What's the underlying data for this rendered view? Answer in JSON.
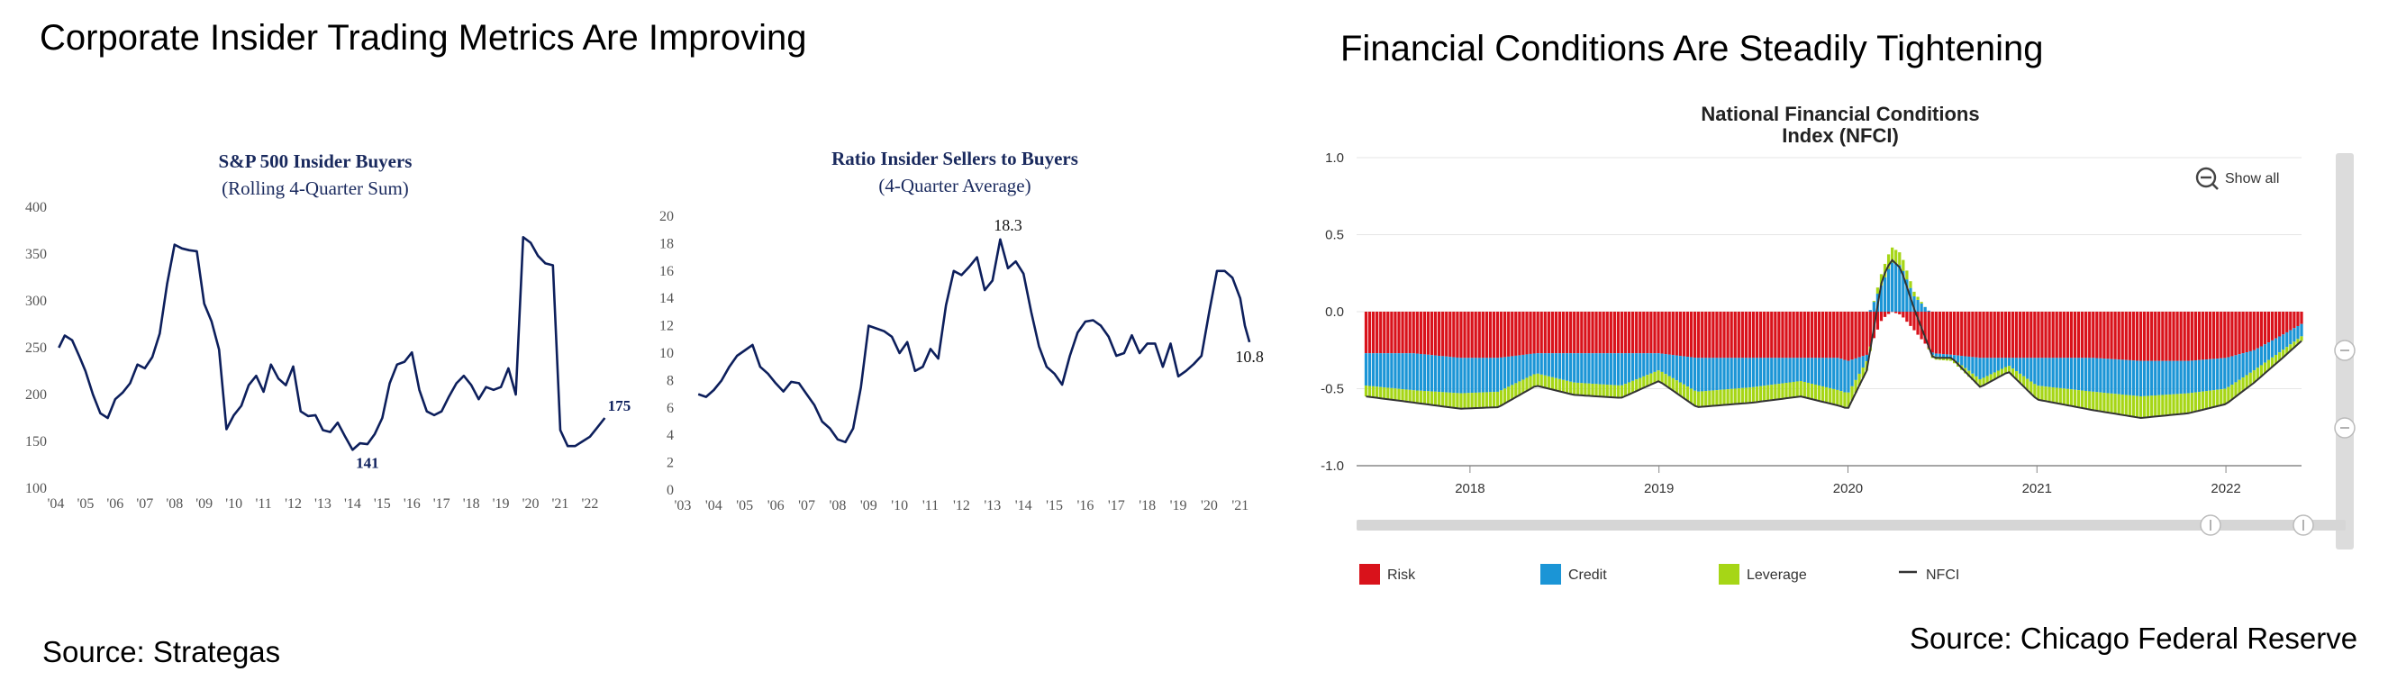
{
  "headings": {
    "left": "Corporate Insider Trading Metrics Are Improving",
    "right": "Financial Conditions Are Steadily Tightening"
  },
  "sources": {
    "left": "Source: Strategas",
    "right": "Source:   Chicago Federal Reserve"
  },
  "colors": {
    "series_navy": "#0d1f5c",
    "risk": "#d9121b",
    "credit": "#1b95d6",
    "leverage": "#a6d616",
    "nfci": "#333333"
  },
  "chart_data": [
    {
      "type": "line",
      "title": "S&P 500 Insider Buyers",
      "subtitle": "(Rolling 4-Quarter Sum)",
      "xlabel": "",
      "ylabel": "",
      "ylim": [
        100,
        400
      ],
      "xlim": [
        2004,
        2022.7
      ],
      "yticks": [
        100,
        150,
        200,
        250,
        300,
        350,
        400
      ],
      "xtick_labels": [
        "'04",
        "'05",
        "'06",
        "'07",
        "'08",
        "'09",
        "'10",
        "'11",
        "'12",
        "'13",
        "'14",
        "'15",
        "'16",
        "'17",
        "'18",
        "'19",
        "'20",
        "'21",
        "'22"
      ],
      "annotations": [
        {
          "text": "141",
          "x": 2014.5,
          "y": 141
        },
        {
          "text": "175",
          "x": 2022.6,
          "y": 175
        }
      ],
      "grid": false,
      "series": [
        {
          "x": [
            2004.1,
            2004.3,
            2004.55,
            2004.8,
            2005.0,
            2005.25,
            2005.5,
            2005.75,
            2006.0,
            2006.25,
            2006.5,
            2006.75,
            2007.0,
            2007.25,
            2007.5,
            2007.75,
            2008.0,
            2008.25,
            2008.5,
            2008.75,
            2009.0,
            2009.25,
            2009.5,
            2009.75,
            2010.0,
            2010.25,
            2010.5,
            2010.75,
            2011.0,
            2011.25,
            2011.5,
            2011.75,
            2012.0,
            2012.25,
            2012.5,
            2012.75,
            2013.0,
            2013.25,
            2013.5,
            2013.75,
            2014.0,
            2014.25,
            2014.5,
            2014.75,
            2015.0,
            2015.25,
            2015.5,
            2015.75,
            2016.0,
            2016.25,
            2016.5,
            2016.75,
            2017.0,
            2017.25,
            2017.5,
            2017.75,
            2018.0,
            2018.25,
            2018.5,
            2018.75,
            2019.0,
            2019.25,
            2019.5,
            2019.75,
            2020.0,
            2020.25,
            2020.5,
            2020.75,
            2021.0,
            2021.25,
            2021.5,
            2021.75,
            2022.0,
            2022.25,
            2022.5
          ],
          "y": [
            250,
            263,
            258,
            240,
            225,
            200,
            180,
            175,
            195,
            202,
            212,
            232,
            228,
            240,
            265,
            318,
            360,
            356,
            354,
            353,
            297,
            278,
            248,
            163,
            178,
            188,
            210,
            220,
            203,
            232,
            217,
            210,
            230,
            182,
            177,
            178,
            162,
            160,
            170,
            155,
            141,
            148,
            147,
            158,
            175,
            212,
            232,
            235,
            245,
            205,
            182,
            178,
            182,
            198,
            212,
            220,
            210,
            195,
            208,
            205,
            208,
            228,
            200,
            368,
            362,
            348,
            340,
            338,
            162,
            145,
            145,
            150,
            155,
            165,
            175
          ]
        }
      ]
    },
    {
      "type": "line",
      "title": "Ratio Insider Sellers to Buyers",
      "subtitle": "(4-Quarter Average)",
      "xlabel": "",
      "ylabel": "",
      "ylim": [
        0,
        20
      ],
      "xlim": [
        2003,
        2021.5
      ],
      "yticks": [
        0,
        2,
        4,
        6,
        8,
        10,
        12,
        14,
        16,
        18,
        20
      ],
      "xtick_labels": [
        "'03",
        "'04",
        "'05",
        "'06",
        "'07",
        "'08",
        "'09",
        "'10",
        "'11",
        "'12",
        "'13",
        "'14",
        "'15",
        "'16",
        "'17",
        "'18",
        "'19",
        "'20",
        "'21"
      ],
      "annotations": [
        {
          "text": "18.3",
          "x": 2013.5,
          "y": 18.3
        },
        {
          "text": "10.8",
          "x": 2021.3,
          "y": 10.8
        }
      ],
      "grid": false,
      "series": [
        {
          "x": [
            2003.5,
            2003.75,
            2004.0,
            2004.25,
            2004.5,
            2004.75,
            2005.0,
            2005.25,
            2005.5,
            2005.75,
            2006.0,
            2006.25,
            2006.5,
            2006.75,
            2007.0,
            2007.25,
            2007.5,
            2007.75,
            2008.0,
            2008.25,
            2008.5,
            2008.75,
            2009.0,
            2009.25,
            2009.5,
            2009.75,
            2010.0,
            2010.25,
            2010.5,
            2010.75,
            2011.0,
            2011.25,
            2011.5,
            2011.75,
            2012.0,
            2012.25,
            2012.5,
            2012.75,
            2013.0,
            2013.25,
            2013.5,
            2013.75,
            2014.0,
            2014.25,
            2014.5,
            2014.75,
            2015.0,
            2015.25,
            2015.5,
            2015.75,
            2016.0,
            2016.25,
            2016.5,
            2016.75,
            2017.0,
            2017.25,
            2017.5,
            2017.75,
            2018.0,
            2018.25,
            2018.5,
            2018.75,
            2019.0,
            2019.25,
            2019.5,
            2019.75,
            2020.0,
            2020.25,
            2020.5,
            2020.75,
            2021.0,
            2021.15,
            2021.3
          ],
          "y": [
            7.0,
            6.8,
            7.3,
            8.0,
            9.0,
            9.8,
            10.2,
            10.6,
            9.0,
            8.5,
            7.8,
            7.2,
            7.9,
            7.8,
            7.0,
            6.2,
            5.0,
            4.5,
            3.7,
            3.5,
            4.5,
            7.5,
            12.0,
            11.8,
            11.6,
            11.2,
            10.0,
            10.8,
            8.7,
            9.0,
            10.3,
            9.6,
            13.5,
            16.0,
            15.7,
            16.3,
            17.0,
            14.6,
            15.3,
            18.3,
            16.2,
            16.7,
            15.8,
            13.0,
            10.5,
            9.0,
            8.5,
            7.7,
            9.8,
            11.5,
            12.3,
            12.4,
            12.0,
            11.2,
            9.8,
            10.0,
            11.3,
            10.0,
            10.7,
            10.7,
            9.0,
            10.7,
            8.3,
            8.7,
            9.2,
            9.8,
            13.0,
            16.0,
            16.0,
            15.5,
            14.0,
            12.0,
            10.8
          ]
        }
      ]
    },
    {
      "type": "area",
      "title": "National Financial Conditions",
      "subtitle": "Index (NFCI)",
      "xlabel": "",
      "ylabel": "",
      "ylim": [
        -1.0,
        1.0
      ],
      "xlim": [
        2017.4,
        2022.4
      ],
      "yticks": [
        "1.0",
        "0.5",
        "0.0",
        "-0.5",
        "-1.0"
      ],
      "xtick_labels": [
        "2018",
        "2019",
        "2020",
        "2021",
        "2022"
      ],
      "stacked": true,
      "grid": true,
      "show_all_label": "Show all",
      "legend": [
        "Risk",
        "Credit",
        "Leverage",
        "NFCI"
      ],
      "legend_position": "bottom",
      "keyframes": [
        {
          "t": 2017.45,
          "risk": -0.27,
          "credit": -0.21,
          "leverage": -0.07,
          "nfci": -0.55
        },
        {
          "t": 2017.7,
          "risk": -0.27,
          "credit": -0.24,
          "leverage": -0.08,
          "nfci": -0.59
        },
        {
          "t": 2017.95,
          "risk": -0.3,
          "credit": -0.23,
          "leverage": -0.1,
          "nfci": -0.63
        },
        {
          "t": 2018.15,
          "risk": -0.3,
          "credit": -0.22,
          "leverage": -0.1,
          "nfci": -0.62
        },
        {
          "t": 2018.35,
          "risk": -0.27,
          "credit": -0.13,
          "leverage": -0.08,
          "nfci": -0.48
        },
        {
          "t": 2018.55,
          "risk": -0.27,
          "credit": -0.19,
          "leverage": -0.08,
          "nfci": -0.54
        },
        {
          "t": 2018.8,
          "risk": -0.27,
          "credit": -0.21,
          "leverage": -0.08,
          "nfci": -0.56
        },
        {
          "t": 2019.0,
          "risk": -0.27,
          "credit": -0.11,
          "leverage": -0.07,
          "nfci": -0.45
        },
        {
          "t": 2019.2,
          "risk": -0.3,
          "credit": -0.22,
          "leverage": -0.1,
          "nfci": -0.62
        },
        {
          "t": 2019.5,
          "risk": -0.3,
          "credit": -0.19,
          "leverage": -0.1,
          "nfci": -0.59
        },
        {
          "t": 2019.75,
          "risk": -0.3,
          "credit": -0.15,
          "leverage": -0.1,
          "nfci": -0.55
        },
        {
          "t": 2019.95,
          "risk": -0.3,
          "credit": -0.21,
          "leverage": -0.1,
          "nfci": -0.61
        },
        {
          "t": 2020.0,
          "risk": -0.32,
          "credit": -0.21,
          "leverage": -0.1,
          "nfci": -0.63
        },
        {
          "t": 2020.1,
          "risk": -0.28,
          "credit": -0.04,
          "leverage": -0.06,
          "nfci": -0.38
        },
        {
          "t": 2020.18,
          "risk": -0.05,
          "credit": 0.18,
          "leverage": 0.08,
          "nfci": 0.21
        },
        {
          "t": 2020.23,
          "risk": 0.0,
          "credit": 0.32,
          "leverage": 0.1,
          "nfci": 0.34
        },
        {
          "t": 2020.28,
          "risk": -0.02,
          "credit": 0.3,
          "leverage": 0.08,
          "nfci": 0.28
        },
        {
          "t": 2020.35,
          "risk": -0.12,
          "credit": 0.1,
          "leverage": 0.03,
          "nfci": 0.02
        },
        {
          "t": 2020.45,
          "risk": -0.27,
          "credit": -0.02,
          "leverage": -0.02,
          "nfci": -0.3
        },
        {
          "t": 2020.55,
          "risk": -0.28,
          "credit": -0.02,
          "leverage": -0.02,
          "nfci": -0.3
        },
        {
          "t": 2020.7,
          "risk": -0.3,
          "credit": -0.14,
          "leverage": -0.05,
          "nfci": -0.49
        },
        {
          "t": 2020.85,
          "risk": -0.3,
          "credit": -0.05,
          "leverage": -0.04,
          "nfci": -0.39
        },
        {
          "t": 2021.0,
          "risk": -0.3,
          "credit": -0.18,
          "leverage": -0.09,
          "nfci": -0.57
        },
        {
          "t": 2021.3,
          "risk": -0.3,
          "credit": -0.22,
          "leverage": -0.12,
          "nfci": -0.64
        },
        {
          "t": 2021.55,
          "risk": -0.32,
          "credit": -0.23,
          "leverage": -0.14,
          "nfci": -0.69
        },
        {
          "t": 2021.8,
          "risk": -0.32,
          "credit": -0.21,
          "leverage": -0.13,
          "nfci": -0.66
        },
        {
          "t": 2022.0,
          "risk": -0.3,
          "credit": -0.2,
          "leverage": -0.1,
          "nfci": -0.6
        },
        {
          "t": 2022.15,
          "risk": -0.25,
          "credit": -0.13,
          "leverage": -0.08,
          "nfci": -0.46
        },
        {
          "t": 2022.3,
          "risk": -0.15,
          "credit": -0.1,
          "leverage": -0.05,
          "nfci": -0.3
        },
        {
          "t": 2022.4,
          "risk": -0.08,
          "credit": -0.08,
          "leverage": -0.03,
          "nfci": -0.19
        }
      ]
    }
  ]
}
